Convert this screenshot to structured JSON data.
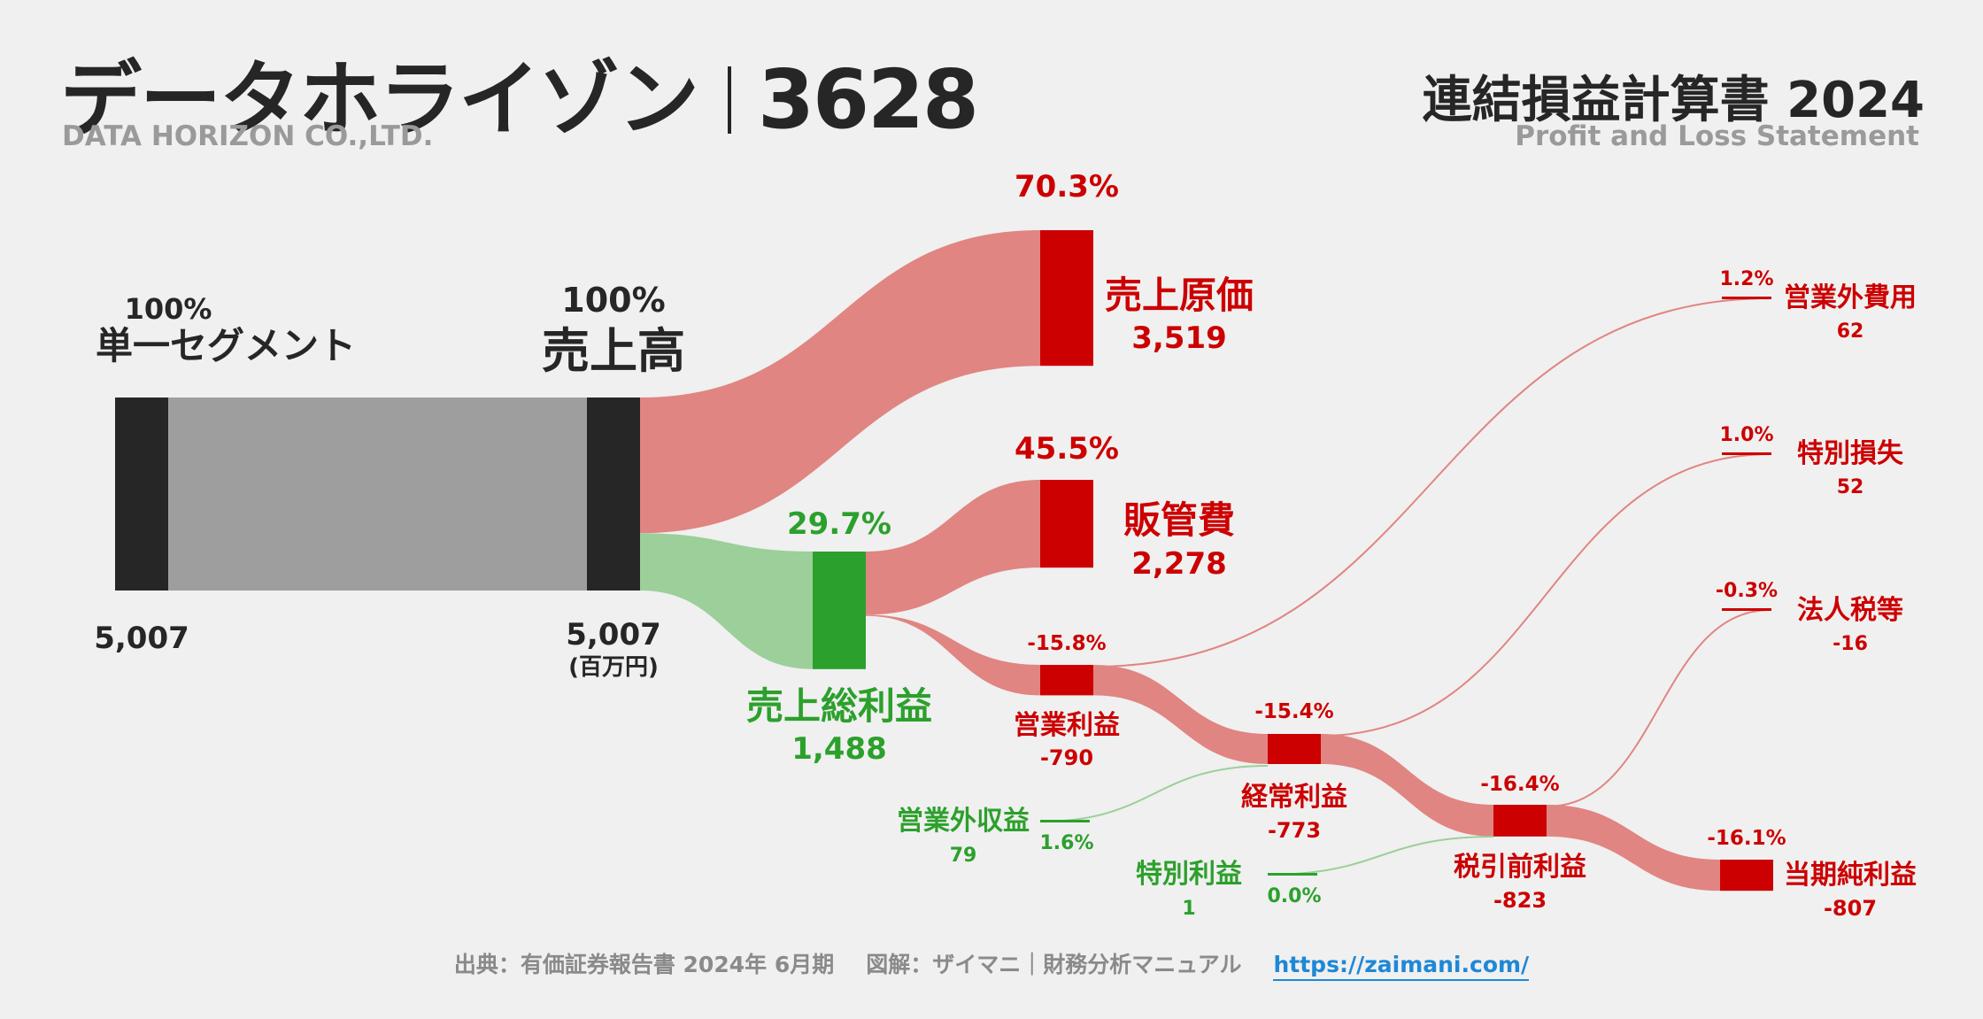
{
  "header": {
    "company": "データホライゾン",
    "code": "3628",
    "company_en": "DATA HORIZON CO.,LTD.",
    "statement": "連結損益計算書 2024",
    "statement_en": "Profit and Loss Statement"
  },
  "footer": {
    "source": "出典：有価証券報告書 2024年 6月期",
    "credit": "図解：ザイマニ｜財務分析マニュアル",
    "url": "https://zaimani.com/"
  },
  "colors": {
    "revenue_node": "#262626",
    "segment_flow": "#9e9e9e",
    "cost_node": "#cc0000",
    "cost_flow": "#e08582",
    "profit_node": "#2ca02c",
    "profit_flow": "#9ccf9a",
    "cost_text": "#cc0000",
    "profit_text": "#2ca02c"
  },
  "chart_data": {
    "type": "sankey",
    "unit": "(百万円)",
    "nodes": [
      {
        "id": "segment",
        "label": "単一セグメント",
        "value": 5007,
        "value_label": "5,007",
        "pct": "100%"
      },
      {
        "id": "revenue",
        "label": "売上高",
        "value": 5007,
        "value_label": "5,007",
        "pct": "100%"
      },
      {
        "id": "cogs",
        "label": "売上原価",
        "value": 3519,
        "value_label": "3,519",
        "pct": "70.3%"
      },
      {
        "id": "gross",
        "label": "売上総利益",
        "value": 1488,
        "value_label": "1,488",
        "pct": "29.7%"
      },
      {
        "id": "sga",
        "label": "販管費",
        "value": 2278,
        "value_label": "2,278",
        "pct": "45.5%"
      },
      {
        "id": "op",
        "label": "営業利益",
        "value": -790,
        "value_label": "-790",
        "pct": "-15.8%"
      },
      {
        "id": "nonop_inc",
        "label": "営業外収益",
        "value": 79,
        "value_label": "79",
        "pct": "1.6%"
      },
      {
        "id": "nonop_exp",
        "label": "営業外費用",
        "value": 62,
        "value_label": "62",
        "pct": "1.2%"
      },
      {
        "id": "ordinary",
        "label": "経常利益",
        "value": -773,
        "value_label": "-773",
        "pct": "-15.4%"
      },
      {
        "id": "extra_gain",
        "label": "特別利益",
        "value": 1,
        "value_label": "1",
        "pct": "0.0%"
      },
      {
        "id": "extra_loss",
        "label": "特別損失",
        "value": 52,
        "value_label": "52",
        "pct": "1.0%"
      },
      {
        "id": "pretax",
        "label": "税引前利益",
        "value": -823,
        "value_label": "-823",
        "pct": "-16.4%"
      },
      {
        "id": "tax",
        "label": "法人税等",
        "value": -16,
        "value_label": "-16",
        "pct": "-0.3%"
      },
      {
        "id": "net",
        "label": "当期純利益",
        "value": -807,
        "value_label": "-807",
        "pct": "-16.1%"
      }
    ],
    "links": [
      {
        "from": "segment",
        "to": "revenue",
        "value": 5007
      },
      {
        "from": "revenue",
        "to": "cogs",
        "value": 3519
      },
      {
        "from": "revenue",
        "to": "gross",
        "value": 1488
      },
      {
        "from": "gross",
        "to": "sga",
        "value": 2278
      },
      {
        "from": "gross",
        "to": "op",
        "value": -790
      },
      {
        "from": "op",
        "to": "nonop_exp",
        "value": 62
      },
      {
        "from": "nonop_inc",
        "to": "ordinary",
        "value": 79
      },
      {
        "from": "op",
        "to": "ordinary",
        "value": -773
      },
      {
        "from": "ordinary",
        "to": "extra_loss",
        "value": 52
      },
      {
        "from": "extra_gain",
        "to": "pretax",
        "value": 1
      },
      {
        "from": "ordinary",
        "to": "pretax",
        "value": -823
      },
      {
        "from": "pretax",
        "to": "tax",
        "value": -16
      },
      {
        "from": "pretax",
        "to": "net",
        "value": -807
      }
    ]
  }
}
